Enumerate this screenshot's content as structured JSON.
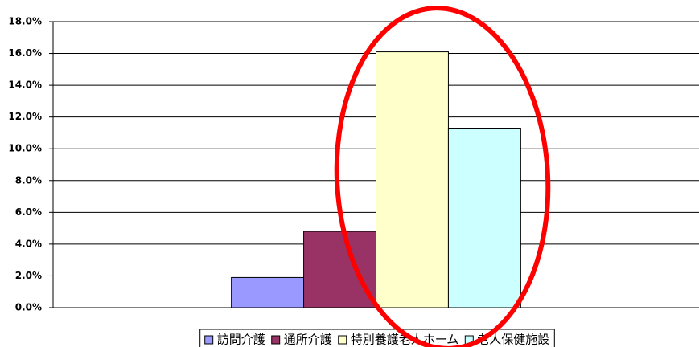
{
  "chart_data": {
    "type": "bar",
    "categories": [
      null
    ],
    "series": [
      {
        "name": "訪問介護",
        "color": "#9999ff",
        "values": [
          1.9
        ]
      },
      {
        "name": "通所介護",
        "color": "#993366",
        "values": [
          4.8
        ]
      },
      {
        "name": "特別養護老人ホーム",
        "color": "#ffffcc",
        "values": [
          16.1
        ]
      },
      {
        "name": "老人保健施設",
        "color": "#ccffff",
        "values": [
          11.3
        ]
      }
    ],
    "ylim": [
      0,
      18
    ],
    "yticks": [
      {
        "value": 0,
        "label": "0.0%"
      },
      {
        "value": 2,
        "label": "2.0%"
      },
      {
        "value": 4,
        "label": "4.0%"
      },
      {
        "value": 6,
        "label": "6.0%"
      },
      {
        "value": 8,
        "label": "8.0%"
      },
      {
        "value": 10,
        "label": "10.0%"
      },
      {
        "value": 12,
        "label": "12.0%"
      },
      {
        "value": 14,
        "label": "14.0%"
      },
      {
        "value": 16,
        "label": "16.0%"
      },
      {
        "value": 18,
        "label": "18.0%"
      }
    ],
    "grid": true,
    "legend": "bottom"
  }
}
